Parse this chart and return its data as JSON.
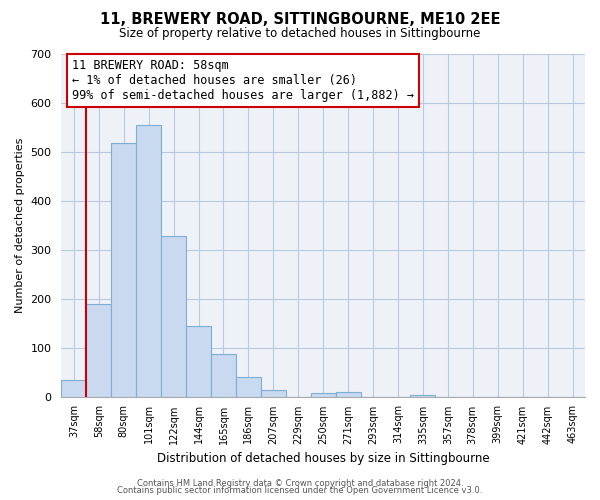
{
  "title": "11, BREWERY ROAD, SITTINGBOURNE, ME10 2EE",
  "subtitle": "Size of property relative to detached houses in Sittingbourne",
  "xlabel": "Distribution of detached houses by size in Sittingbourne",
  "ylabel": "Number of detached properties",
  "bar_labels": [
    "37sqm",
    "58sqm",
    "80sqm",
    "101sqm",
    "122sqm",
    "144sqm",
    "165sqm",
    "186sqm",
    "207sqm",
    "229sqm",
    "250sqm",
    "271sqm",
    "293sqm",
    "314sqm",
    "335sqm",
    "357sqm",
    "378sqm",
    "399sqm",
    "421sqm",
    "442sqm",
    "463sqm"
  ],
  "bar_values": [
    33,
    190,
    518,
    555,
    328,
    144,
    87,
    40,
    13,
    0,
    8,
    10,
    0,
    0,
    4,
    0,
    0,
    0,
    0,
    0,
    0
  ],
  "bar_fill_color": "#c9d9f0",
  "bar_edge_color": "#7bafd4",
  "highlight_line_color": "#cc0000",
  "highlight_bar_index": 1,
  "highlight_box_text": "11 BREWERY ROAD: 58sqm\n← 1% of detached houses are smaller (26)\n99% of semi-detached houses are larger (1,882) →",
  "highlight_box_facecolor": "#ffffff",
  "highlight_box_edgecolor": "#cc0000",
  "ylim": [
    0,
    700
  ],
  "yticks": [
    0,
    100,
    200,
    300,
    400,
    500,
    600,
    700
  ],
  "footer_line1": "Contains HM Land Registry data © Crown copyright and database right 2024.",
  "footer_line2": "Contains public sector information licensed under the Open Government Licence v3.0.",
  "bg_color": "#ffffff",
  "grid_color": "#b8c8e0",
  "axes_bg_color": "#eef2f8"
}
